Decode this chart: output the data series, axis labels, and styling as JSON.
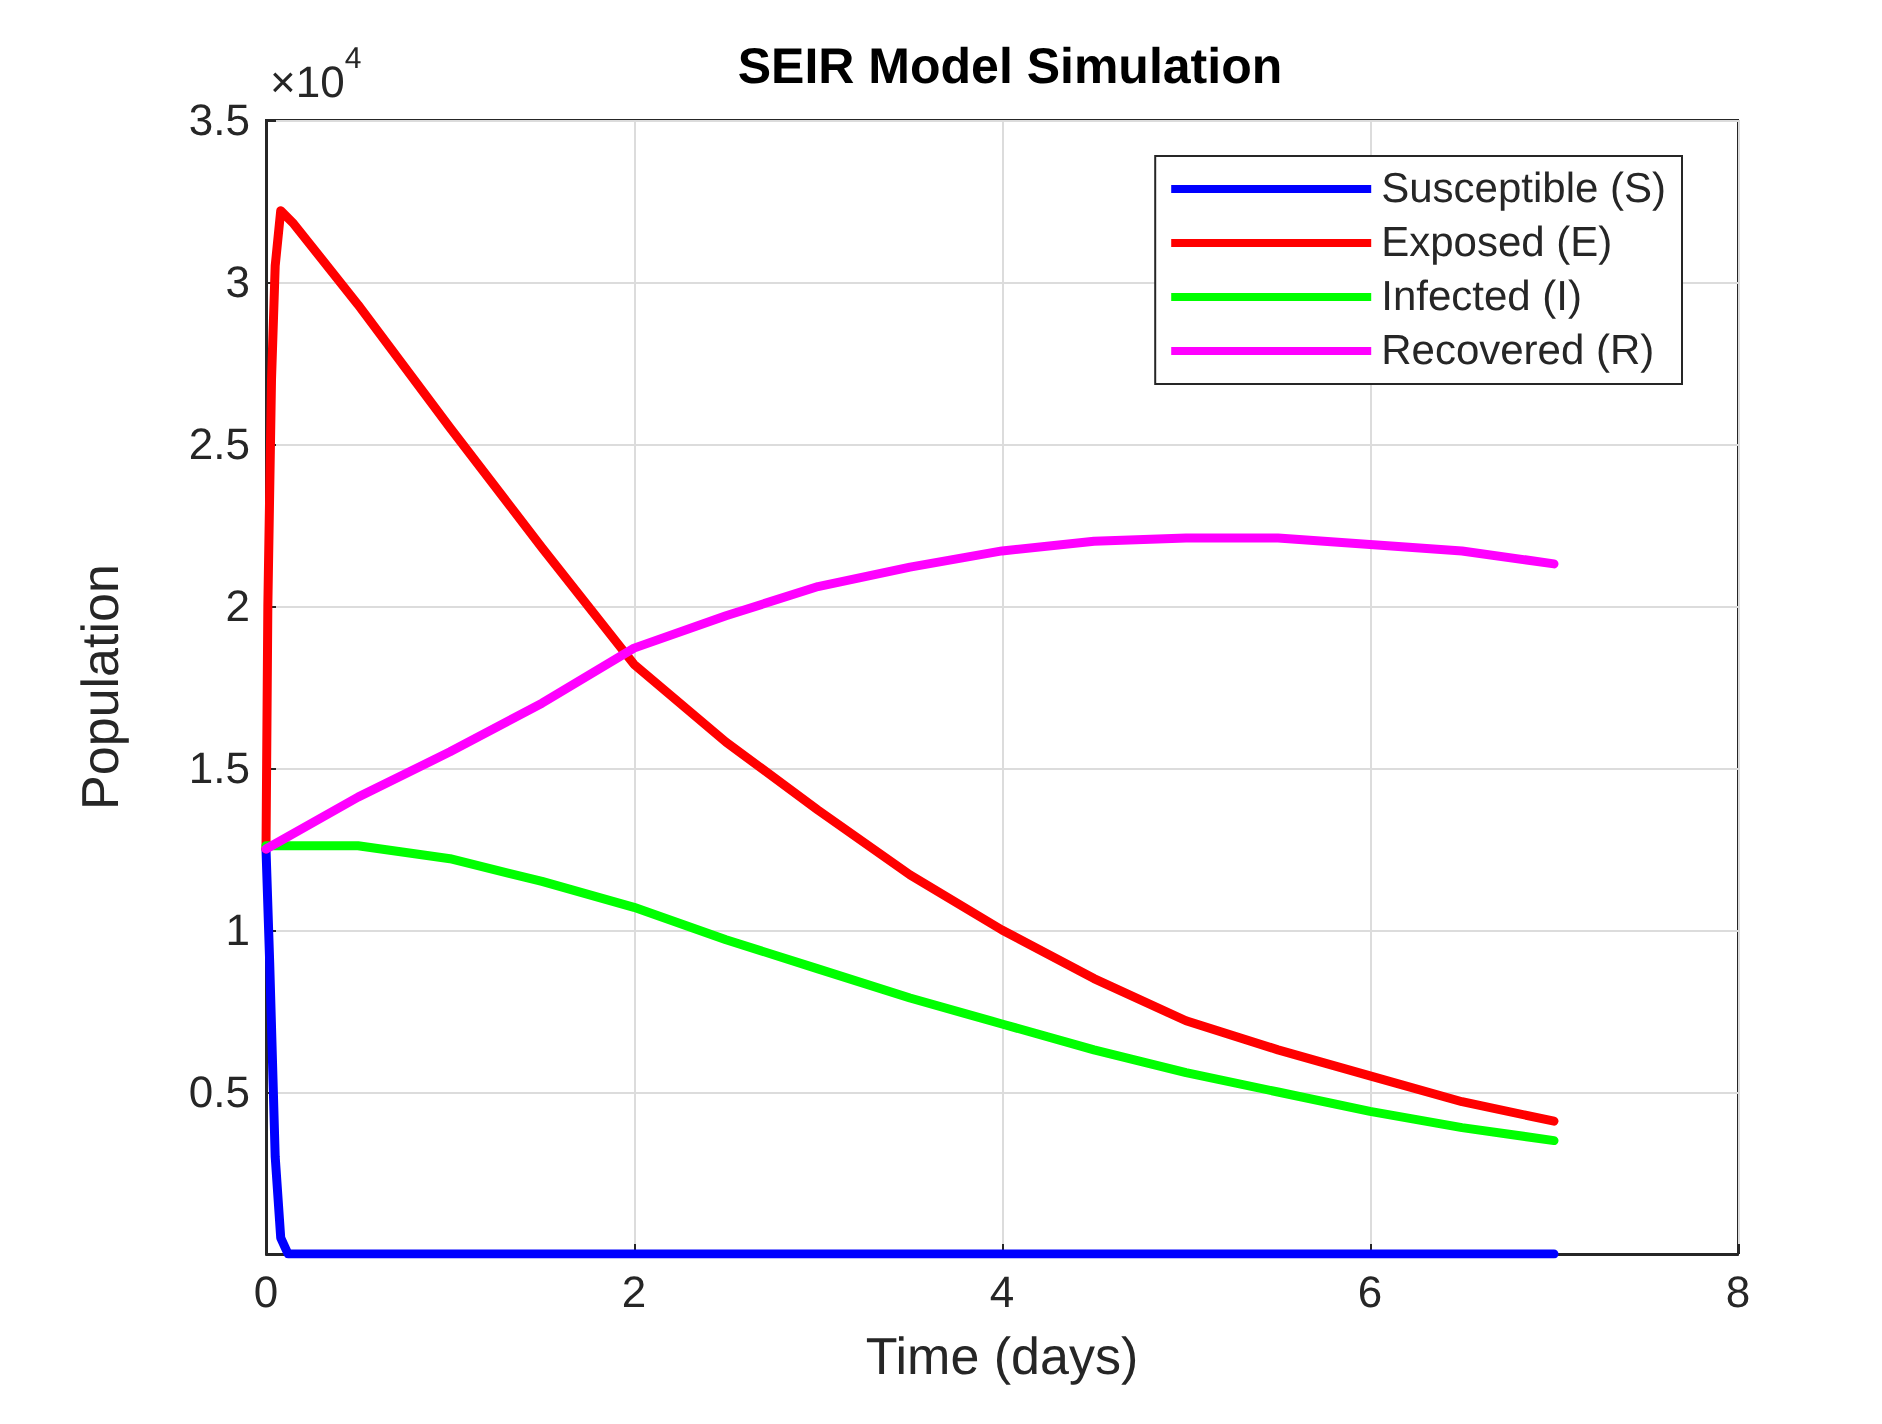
{
  "chart_data": {
    "type": "line",
    "title": "SEIR Model Simulation",
    "xlabel": "Time (days)",
    "ylabel": "Population",
    "annotations": [
      "×10$^{4}$"
    ],
    "xlim": [
      0,
      8
    ],
    "xticks": [
      0,
      2,
      4,
      6,
      8
    ],
    "ylim": [
      0,
      3.5
    ],
    "yticks": [
      0.5,
      1,
      1.5,
      2,
      2.5,
      3,
      3.5
    ],
    "grid": true,
    "legend": "top right",
    "line_style": "solid",
    "marker": "none",
    "series": [
      {
        "name": "Susceptible (S)",
        "color": "#0000ff",
        "x": [
          0,
          0.02,
          0.05,
          0.08,
          0.12,
          1,
          2,
          3,
          4,
          5,
          6,
          7
        ],
        "values": [
          1.25,
          0.9,
          0.3,
          0.05,
          0,
          0,
          0,
          0,
          0,
          0,
          0,
          0
        ]
      },
      {
        "name": "Exposed (E)",
        "color": "#ff0000",
        "x": [
          0,
          0.01,
          0.03,
          0.05,
          0.08,
          0.15,
          0.5,
          1,
          1.5,
          2,
          2.5,
          3,
          3.5,
          4,
          4.5,
          5,
          5.5,
          6,
          6.5,
          7
        ],
        "values": [
          1.25,
          2.0,
          2.7,
          3.05,
          3.22,
          3.18,
          2.93,
          2.55,
          2.18,
          1.82,
          1.58,
          1.37,
          1.17,
          1.0,
          0.85,
          0.72,
          0.63,
          0.55,
          0.47,
          0.41
        ]
      },
      {
        "name": "Infected (I)",
        "color": "#00ff00",
        "x": [
          0,
          0.5,
          1,
          1.5,
          2,
          2.5,
          3,
          3.5,
          4,
          4.5,
          5,
          5.5,
          6,
          6.5,
          7
        ],
        "values": [
          1.26,
          1.26,
          1.22,
          1.15,
          1.07,
          0.97,
          0.88,
          0.79,
          0.71,
          0.63,
          0.56,
          0.5,
          0.44,
          0.39,
          0.35
        ]
      },
      {
        "name": "Recovered (R)",
        "color": "#ff00ff",
        "x": [
          0,
          0.5,
          1,
          1.5,
          2,
          2.5,
          3,
          3.5,
          4,
          4.5,
          5,
          5.5,
          6,
          6.5,
          7
        ],
        "values": [
          1.25,
          1.41,
          1.55,
          1.7,
          1.87,
          1.97,
          2.06,
          2.12,
          2.17,
          2.2,
          2.21,
          2.21,
          2.19,
          2.17,
          2.13
        ]
      }
    ]
  }
}
